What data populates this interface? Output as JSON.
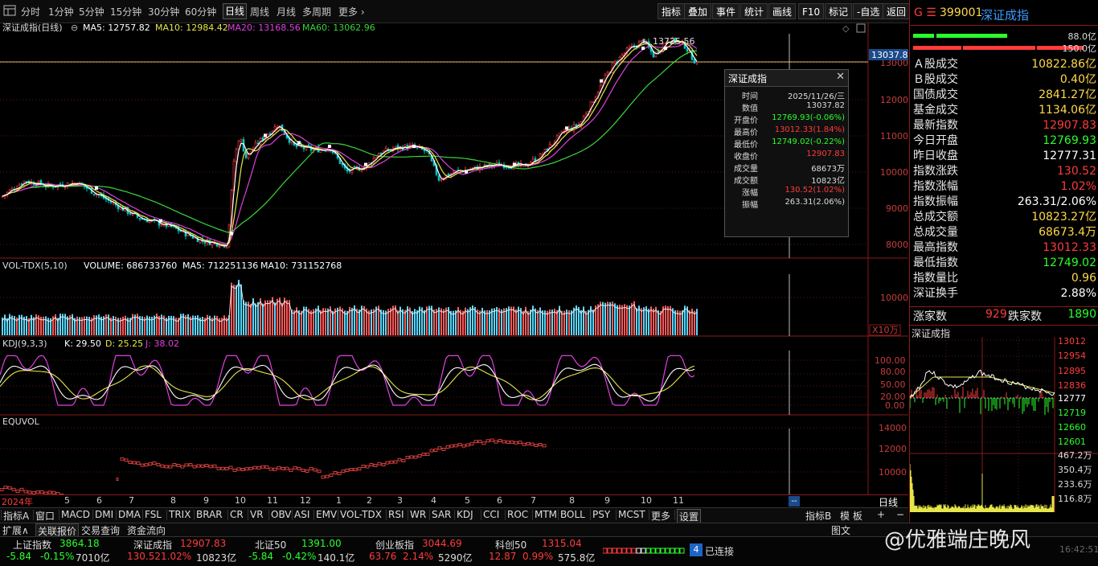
{
  "toolbar": {
    "periods": [
      "分时",
      "1分钟",
      "5分钟",
      "15分钟",
      "30分钟",
      "60分钟",
      "日线",
      "周线",
      "月线",
      "多周期",
      "更多 ›"
    ],
    "active_period": "日线",
    "buttons": [
      "指标",
      "叠加",
      "事件",
      "统计",
      "画线",
      "F10",
      "标记",
      "-自选",
      "返回"
    ]
  },
  "main_chart": {
    "title": "深证成指(日线)",
    "ma5": "MA5: 12757.82",
    "ma10": "MA10: 12984.42",
    "ma20": "MA20: 13168.56",
    "ma60": "MA60: 13062.96",
    "high_label": "13725.56",
    "cursor_price": "13037.8",
    "y_ticks": [
      "13000",
      "12000",
      "11000",
      "10000",
      "9000",
      "8000"
    ]
  },
  "volume_panel": {
    "title": "VOL-TDX(5,10)",
    "volume": "VOLUME: 686733760",
    "ma5": "MA5: 712251136",
    "ma10": "MA10: 731152768",
    "y_tick": "10000",
    "unit": "X10万"
  },
  "kdj_panel": {
    "title": "KDJ(9,3,3)",
    "k": "K: 29.50",
    "d": "D: 25.25",
    "j": "J: 38.02",
    "y_ticks": [
      "100.00",
      "80.00",
      "50.00",
      "20.00",
      "0.00"
    ]
  },
  "equvol_panel": {
    "title": "EQUVOL",
    "y_ticks": [
      "14000",
      "12000",
      "10000"
    ]
  },
  "x_axis": {
    "labels": [
      "2024年",
      "5",
      "6",
      "7",
      "8",
      "9",
      "10",
      "11",
      "12",
      "1",
      "2",
      "3",
      "4",
      "5",
      "6",
      "7",
      "8",
      "9",
      "10",
      "11"
    ],
    "period_tag": "日线",
    "cursor_tag": "--"
  },
  "popup": {
    "title": "深证成指",
    "rows": [
      {
        "label": "时间",
        "value": "2025/11/26/三",
        "color": "#ddd"
      },
      {
        "label": "数值",
        "value": "13037.82",
        "color": "#ddd"
      },
      {
        "label": "开盘价",
        "value": "12769.93(-0.06%)",
        "color": "#2aff2a"
      },
      {
        "label": "最高价",
        "value": "13012.33(1.84%)",
        "color": "#ff3b3b"
      },
      {
        "label": "最低价",
        "value": "12749.02(-0.22%)",
        "color": "#2aff2a"
      },
      {
        "label": "收盘价",
        "value": "12907.83",
        "color": "#ff3b3b"
      },
      {
        "label": "成交量",
        "value": "68673万",
        "color": "#ddd"
      },
      {
        "label": "成交额",
        "value": "10823亿",
        "color": "#ddd"
      },
      {
        "label": "涨幅",
        "value": "130.52(1.02%)",
        "color": "#ff3b3b"
      },
      {
        "label": "振幅",
        "value": "263.31(2.06%)",
        "color": "#ddd"
      }
    ]
  },
  "right_panel": {
    "code_prefix": "G ☰",
    "code": "399001",
    "name": "深证成指",
    "bar_val_1": "88.0亿",
    "bar_val_2": "150.0亿",
    "rows": [
      {
        "label": "Ａ股成交",
        "value": "10822.86亿",
        "color": "yellow"
      },
      {
        "label": "Ｂ股成交",
        "value": "0.40亿",
        "color": "yellow"
      },
      {
        "label": "国债成交",
        "value": "2841.27亿",
        "color": "yellow"
      },
      {
        "label": "基金成交",
        "value": "1134.06亿",
        "color": "yellow"
      },
      {
        "label": "最新指数",
        "value": "12907.83",
        "color": "red"
      },
      {
        "label": "今日开盘",
        "value": "12769.93",
        "color": "green"
      },
      {
        "label": "昨日收盘",
        "value": "12777.31",
        "color": "white"
      },
      {
        "label": "指数涨跌",
        "value": "130.52",
        "color": "red"
      },
      {
        "label": "指数涨幅",
        "value": "1.02%",
        "color": "red"
      },
      {
        "label": "指数振幅",
        "value": "263.31/2.06%",
        "color": "white"
      },
      {
        "label": "总成交额",
        "value": "10823.27亿",
        "color": "yellow"
      },
      {
        "label": "总成交量",
        "value": "68673.4万",
        "color": "yellow"
      },
      {
        "label": "最高指数",
        "value": "13012.33",
        "color": "red"
      },
      {
        "label": "最低指数",
        "value": "12749.02",
        "color": "green"
      },
      {
        "label": "指数量比",
        "value": "0.96",
        "color": "yellow"
      },
      {
        "label": "深证换手",
        "value": "2.88%",
        "color": "white"
      }
    ],
    "up_label": "涨家数",
    "up_count": "929",
    "down_label": "跌家数",
    "down_count": "1890",
    "mini_title": "深证成指",
    "mini_price_ticks": [
      "13012",
      "12954",
      "12895",
      "12836",
      "12777",
      "12719",
      "12660",
      "12601"
    ],
    "mini_vol_ticks": [
      "467.2万",
      "350.4万",
      "233.6万",
      "116.8万"
    ]
  },
  "indicator_tabs": [
    "指标A",
    "窗口",
    "MACD",
    "DMI",
    "DMA",
    "FSL",
    "TRIX",
    "BRAR",
    "CR",
    "VR",
    "OBV",
    "ASI",
    "EMV",
    "VOL-TDX",
    "RSI",
    "WR",
    "SAR",
    "KDJ",
    "CCI",
    "ROC",
    "MTM",
    "BOLL",
    "PSY",
    "MCST",
    "更多",
    "设置"
  ],
  "indicator_right": [
    "指标B",
    "模 板",
    "+",
    "−"
  ],
  "ext_bar": [
    "扩展∧",
    "关联报价",
    "交易查询",
    "资金流向"
  ],
  "ext_right": "图文",
  "status": {
    "items": [
      {
        "name": "上证指数",
        "price": "3864.18",
        "chg": "-5.84",
        "pct": "-0.15%",
        "amt": "7010亿",
        "up": false
      },
      {
        "name": "深证成指",
        "price": "12907.83",
        "chg": "130.52",
        "pct": "1.02%",
        "amt": "10823亿",
        "up": true
      },
      {
        "name": "北证50",
        "price": "1391.00",
        "chg": "-5.84",
        "pct": "-0.42%",
        "amt": "140.1亿",
        "up": false
      },
      {
        "name": "创业板指",
        "price": "3044.69",
        "chg": "63.76",
        "pct": "2.14%",
        "amt": "5290亿",
        "up": true
      },
      {
        "name": "科创50",
        "price": "1315.04",
        "chg": "12.87",
        "pct": "0.99%",
        "amt": "575.8亿",
        "up": true
      }
    ],
    "conn_num": "4",
    "conn_text": "已连接",
    "clock": "16:42:51"
  },
  "watermark": "@优雅端庄晚风"
}
